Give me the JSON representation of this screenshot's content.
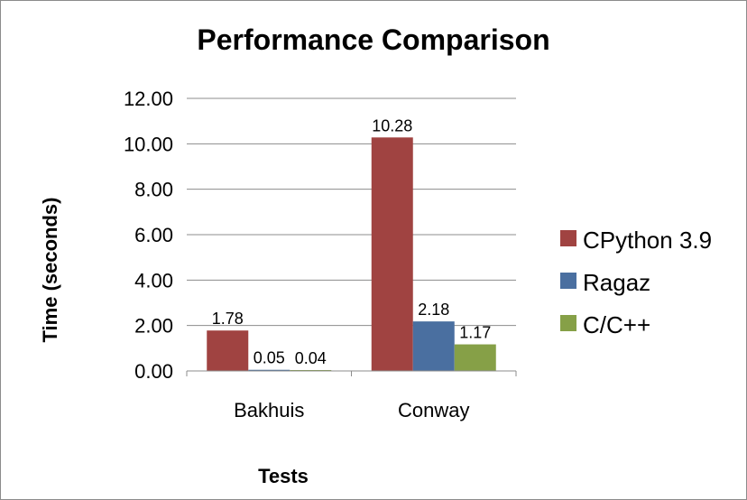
{
  "chart_data": {
    "type": "bar",
    "title": "Performance Comparison",
    "xlabel": "Tests",
    "ylabel": "Time (seconds)",
    "categories": [
      "Bakhuis",
      "Conway"
    ],
    "series": [
      {
        "name": "CPython 3.9",
        "values": [
          1.78,
          10.28
        ],
        "labels": [
          "1.78",
          "10.28"
        ],
        "color": "#a04341"
      },
      {
        "name": "Ragaz",
        "values": [
          0.05,
          2.18
        ],
        "labels": [
          "0.05",
          "2.18"
        ],
        "color": "#4a6fa0"
      },
      {
        "name": "C/C++",
        "values": [
          0.04,
          1.17
        ],
        "labels": [
          "0.04",
          "1.17"
        ],
        "color": "#86a047"
      }
    ],
    "ylim": [
      0,
      12
    ],
    "yticks": [
      "0.00",
      "2.00",
      "4.00",
      "6.00",
      "8.00",
      "10.00",
      "12.00"
    ],
    "grid": true,
    "legend_position": "right"
  }
}
